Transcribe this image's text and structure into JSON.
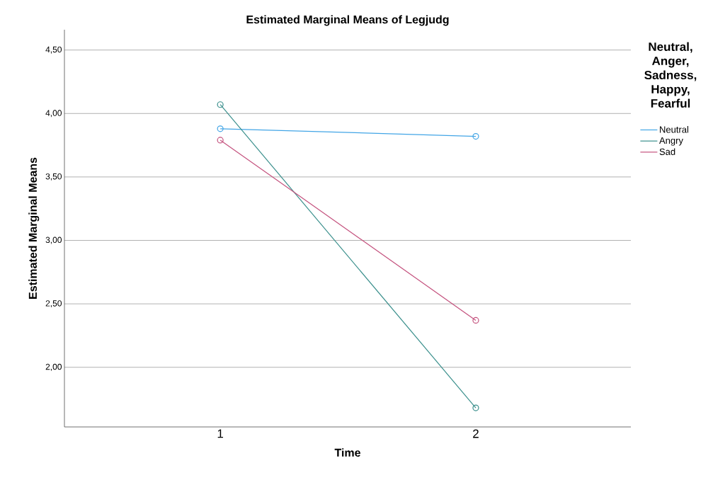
{
  "chart_data": {
    "type": "line",
    "title": "Estimated Marginal Means of Legjudg",
    "xlabel": "Time",
    "ylabel": "Estimated Marginal Means",
    "legend_title": "Neutral, Anger, Sadness, Happy, Fearful",
    "categories": [
      "1",
      "2"
    ],
    "series": [
      {
        "name": "Neutral",
        "color": "#42a5e6",
        "values": [
          3.88,
          3.82
        ]
      },
      {
        "name": "Angry",
        "color": "#3a8f8c",
        "values": [
          4.07,
          1.68
        ]
      },
      {
        "name": "Sad",
        "color": "#c4527e",
        "values": [
          3.79,
          2.37
        ]
      }
    ],
    "ylim": [
      1.53,
      4.66
    ],
    "yticks": [
      {
        "value": 2.0,
        "label": "2,00"
      },
      {
        "value": 2.5,
        "label": "2,50"
      },
      {
        "value": 3.0,
        "label": "3,00"
      },
      {
        "value": 3.5,
        "label": "3,50"
      },
      {
        "value": 4.0,
        "label": "4,00"
      },
      {
        "value": 4.5,
        "label": "4,50"
      }
    ],
    "grid": "y",
    "legend": "top right",
    "marker": "circle"
  }
}
